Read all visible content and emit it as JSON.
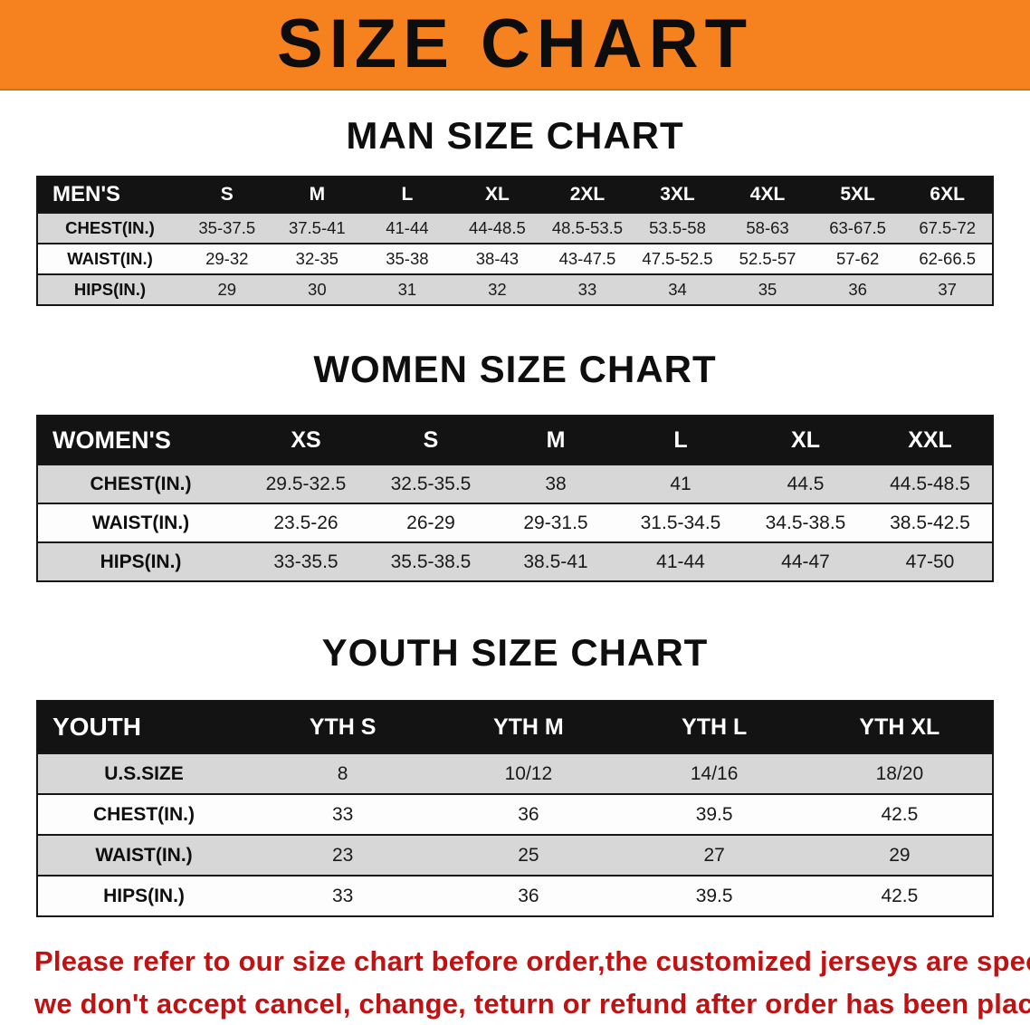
{
  "banner": {
    "title": "SIZE CHART",
    "bg_color": "#F5821F"
  },
  "sections": [
    {
      "heading": "MAN SIZE CHART",
      "corner_label": "MEN'S",
      "columns": [
        "S",
        "M",
        "L",
        "XL",
        "2XL",
        "3XL",
        "4XL",
        "5XL",
        "6XL"
      ],
      "rows": [
        {
          "label": "CHEST(IN.)",
          "values": [
            "35-37.5",
            "37.5-41",
            "41-44",
            "44-48.5",
            "48.5-53.5",
            "53.5-58",
            "58-63",
            "63-67.5",
            "67.5-72"
          ]
        },
        {
          "label": "WAIST(IN.)",
          "values": [
            "29-32",
            "32-35",
            "35-38",
            "38-43",
            "43-47.5",
            "47.5-52.5",
            "52.5-57",
            "57-62",
            "62-66.5"
          ]
        },
        {
          "label": "HIPS(IN.)",
          "values": [
            "29",
            "30",
            "31",
            "32",
            "33",
            "34",
            "35",
            "36",
            "37"
          ]
        }
      ]
    },
    {
      "heading": "WOMEN SIZE CHART",
      "corner_label": "WOMEN'S",
      "columns": [
        "XS",
        "S",
        "M",
        "L",
        "XL",
        "XXL"
      ],
      "rows": [
        {
          "label": "CHEST(IN.)",
          "values": [
            "29.5-32.5",
            "32.5-35.5",
            "38",
            "41",
            "44.5",
            "44.5-48.5"
          ]
        },
        {
          "label": "WAIST(IN.)",
          "values": [
            "23.5-26",
            "26-29",
            "29-31.5",
            "31.5-34.5",
            "34.5-38.5",
            "38.5-42.5"
          ]
        },
        {
          "label": "HIPS(IN.)",
          "values": [
            "33-35.5",
            "35.5-38.5",
            "38.5-41",
            "41-44",
            "44-47",
            "47-50"
          ]
        }
      ]
    },
    {
      "heading": "YOUTH SIZE CHART",
      "corner_label": "YOUTH",
      "columns": [
        "YTH S",
        "YTH M",
        "YTH L",
        "YTH XL"
      ],
      "rows": [
        {
          "label": "U.S.SIZE",
          "values": [
            "8",
            "10/12",
            "14/16",
            "18/20"
          ]
        },
        {
          "label": "CHEST(IN.)",
          "values": [
            "33",
            "36",
            "39.5",
            "42.5"
          ]
        },
        {
          "label": "WAIST(IN.)",
          "values": [
            "23",
            "25",
            "27",
            "29"
          ]
        },
        {
          "label": "HIPS(IN.)",
          "values": [
            "33",
            "36",
            "39.5",
            "42.5"
          ]
        }
      ]
    }
  ],
  "disclaimer": {
    "text_color": "#c01212",
    "lines": [
      "Please refer to our size chart before order,the customized jerseys are special products,",
      "we don't accept cancel, change, teturn or refund after order has been placed!"
    ]
  }
}
